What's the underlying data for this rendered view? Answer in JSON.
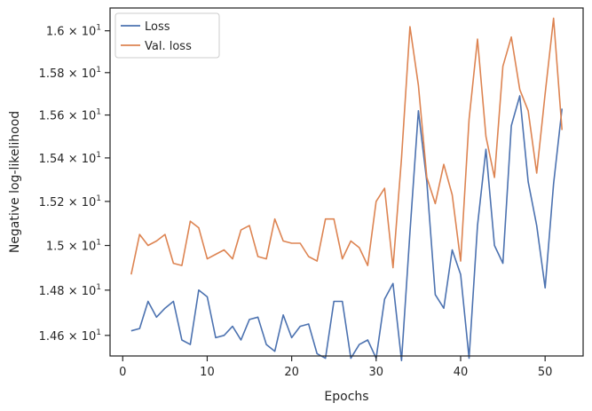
{
  "chart_data": {
    "type": "line",
    "xlabel": "Epochs",
    "ylabel": "Negative log-likelihood",
    "xlim": [
      -1.5,
      54.5
    ],
    "ylim": [
      14.51,
      16.11
    ],
    "y_scale": "log",
    "grid": false,
    "legend_position": "top-left",
    "x_ticks": [
      0,
      10,
      20,
      30,
      40,
      50
    ],
    "x_tick_labels": [
      "0",
      "10",
      "20",
      "30",
      "40",
      "50"
    ],
    "y_ticks": [
      14.6,
      14.8,
      15.0,
      15.2,
      15.4,
      15.6,
      15.8,
      16.0
    ],
    "y_tick_labels": [
      [
        "1.46",
        "×",
        "10",
        "1"
      ],
      [
        "1.48",
        "×",
        "10",
        "1"
      ],
      [
        "1.5",
        "×",
        "10",
        "1"
      ],
      [
        "1.52",
        "×",
        "10",
        "1"
      ],
      [
        "1.54",
        "×",
        "10",
        "1"
      ],
      [
        "1.56",
        "×",
        "10",
        "1"
      ],
      [
        "1.58",
        "×",
        "10",
        "1"
      ],
      [
        "1.6",
        "×",
        "10",
        "1"
      ]
    ],
    "x": [
      1,
      2,
      3,
      4,
      5,
      6,
      7,
      8,
      9,
      10,
      11,
      12,
      13,
      14,
      15,
      16,
      17,
      18,
      19,
      20,
      21,
      22,
      23,
      24,
      25,
      26,
      27,
      28,
      29,
      30,
      31,
      32,
      33,
      34,
      35,
      36,
      37,
      38,
      39,
      40,
      41,
      42,
      43,
      44,
      45,
      46,
      47,
      48,
      49,
      50,
      51,
      52
    ],
    "series": [
      {
        "name": "Loss",
        "color": "#4c72b0",
        "values": [
          14.62,
          14.63,
          14.75,
          14.68,
          14.72,
          14.75,
          14.58,
          14.56,
          14.8,
          14.77,
          14.59,
          14.6,
          14.64,
          14.58,
          14.67,
          14.68,
          14.56,
          14.53,
          14.69,
          14.59,
          14.64,
          14.65,
          14.52,
          14.5,
          14.75,
          14.75,
          14.5,
          14.56,
          14.58,
          14.5,
          14.76,
          14.83,
          14.49,
          15.06,
          15.62,
          15.29,
          14.78,
          14.72,
          14.98,
          14.87,
          14.5,
          15.09,
          15.44,
          15.0,
          14.92,
          15.55,
          15.69,
          15.29,
          15.09,
          14.81,
          15.28,
          15.63
        ]
      },
      {
        "name": "Val. loss",
        "color": "#dd8452",
        "values": [
          14.87,
          15.05,
          15.0,
          15.02,
          15.05,
          14.92,
          14.91,
          15.11,
          15.08,
          14.94,
          14.96,
          14.98,
          14.94,
          15.07,
          15.09,
          14.95,
          14.94,
          15.12,
          15.02,
          15.01,
          15.01,
          14.95,
          14.93,
          15.12,
          15.12,
          14.94,
          15.02,
          14.99,
          14.91,
          15.2,
          15.26,
          14.9,
          15.4,
          16.02,
          15.74,
          15.31,
          15.19,
          15.37,
          15.23,
          14.93,
          15.58,
          15.96,
          15.5,
          15.31,
          15.83,
          15.97,
          15.72,
          15.62,
          15.33,
          15.7,
          16.06,
          15.53
        ]
      }
    ]
  }
}
